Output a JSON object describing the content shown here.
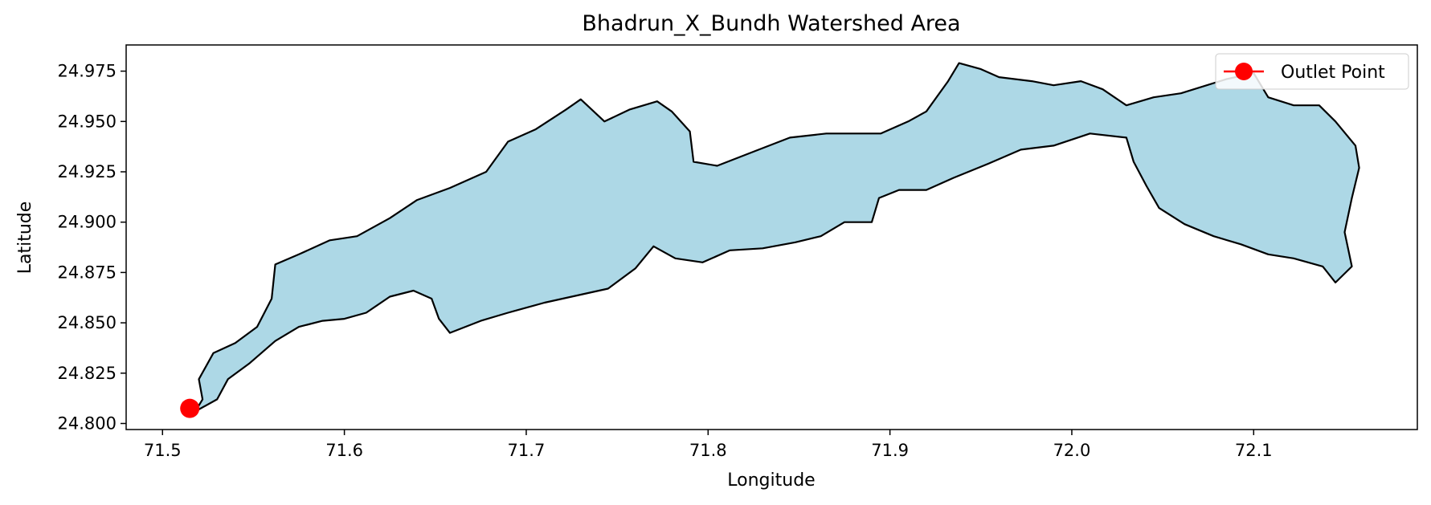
{
  "chart_data": {
    "type": "area",
    "title": "Bhadrun_X_Bundh Watershed Area",
    "xlabel": "Longitude",
    "ylabel": "Latitude",
    "xlim": [
      71.48,
      72.19
    ],
    "ylim": [
      24.797,
      24.988
    ],
    "xticks": [
      71.5,
      71.6,
      71.7,
      71.8,
      71.9,
      72.0,
      72.1
    ],
    "yticks": [
      24.8,
      24.825,
      24.85,
      24.875,
      24.9,
      24.925,
      24.95,
      24.975
    ],
    "xtick_labels": [
      "71.5",
      "71.6",
      "71.7",
      "71.8",
      "71.9",
      "72.0",
      "72.1"
    ],
    "ytick_labels": [
      "24.800",
      "24.825",
      "24.850",
      "24.875",
      "24.900",
      "24.925",
      "24.950",
      "24.975"
    ],
    "grid": false,
    "legend": {
      "placement": "top-right",
      "entries": [
        {
          "label": "Outlet Point",
          "marker": "circle",
          "color": "#ff0000"
        }
      ]
    },
    "series": [
      {
        "kind": "polygon",
        "fill": "#add8e6",
        "edge": "#000000",
        "points": [
          [
            71.518,
            24.806
          ],
          [
            71.522,
            24.812
          ],
          [
            71.52,
            24.822
          ],
          [
            71.528,
            24.835
          ],
          [
            71.54,
            24.84
          ],
          [
            71.552,
            24.848
          ],
          [
            71.56,
            24.862
          ],
          [
            71.562,
            24.879
          ],
          [
            71.575,
            24.884
          ],
          [
            71.592,
            24.891
          ],
          [
            71.607,
            24.893
          ],
          [
            71.625,
            24.902
          ],
          [
            71.64,
            24.911
          ],
          [
            71.658,
            24.917
          ],
          [
            71.678,
            24.925
          ],
          [
            71.69,
            24.94
          ],
          [
            71.705,
            24.946
          ],
          [
            71.722,
            24.956
          ],
          [
            71.73,
            24.961
          ],
          [
            71.743,
            24.95
          ],
          [
            71.757,
            24.956
          ],
          [
            71.772,
            24.96
          ],
          [
            71.78,
            24.955
          ],
          [
            71.79,
            24.945
          ],
          [
            71.792,
            24.93
          ],
          [
            71.805,
            24.928
          ],
          [
            71.825,
            24.935
          ],
          [
            71.845,
            24.942
          ],
          [
            71.865,
            24.944
          ],
          [
            71.88,
            24.944
          ],
          [
            71.895,
            24.944
          ],
          [
            71.91,
            24.95
          ],
          [
            71.92,
            24.955
          ],
          [
            71.932,
            24.97
          ],
          [
            71.938,
            24.979
          ],
          [
            71.95,
            24.976
          ],
          [
            71.96,
            24.972
          ],
          [
            71.978,
            24.97
          ],
          [
            71.99,
            24.968
          ],
          [
            72.005,
            24.97
          ],
          [
            72.017,
            24.966
          ],
          [
            72.03,
            24.958
          ],
          [
            72.045,
            24.962
          ],
          [
            72.06,
            24.964
          ],
          [
            72.085,
            24.971
          ],
          [
            72.1,
            24.974
          ],
          [
            72.108,
            24.962
          ],
          [
            72.122,
            24.958
          ],
          [
            72.136,
            24.958
          ],
          [
            72.145,
            24.95
          ],
          [
            72.156,
            24.938
          ],
          [
            72.158,
            24.927
          ],
          [
            72.154,
            24.912
          ],
          [
            72.15,
            24.895
          ],
          [
            72.154,
            24.878
          ],
          [
            72.145,
            24.87
          ],
          [
            72.138,
            24.878
          ],
          [
            72.122,
            24.882
          ],
          [
            72.108,
            24.884
          ],
          [
            72.093,
            24.889
          ],
          [
            72.078,
            24.893
          ],
          [
            72.062,
            24.899
          ],
          [
            72.048,
            24.907
          ],
          [
            72.041,
            24.918
          ],
          [
            72.034,
            24.93
          ],
          [
            72.03,
            24.942
          ],
          [
            72.01,
            24.944
          ],
          [
            71.99,
            24.938
          ],
          [
            71.972,
            24.936
          ],
          [
            71.954,
            24.929
          ],
          [
            71.935,
            24.922
          ],
          [
            71.92,
            24.916
          ],
          [
            71.905,
            24.916
          ],
          [
            71.894,
            24.912
          ],
          [
            71.89,
            24.9
          ],
          [
            71.882,
            24.9
          ],
          [
            71.875,
            24.9
          ],
          [
            71.862,
            24.893
          ],
          [
            71.848,
            24.89
          ],
          [
            71.83,
            24.887
          ],
          [
            71.812,
            24.886
          ],
          [
            71.797,
            24.88
          ],
          [
            71.782,
            24.882
          ],
          [
            71.77,
            24.888
          ],
          [
            71.76,
            24.877
          ],
          [
            71.745,
            24.867
          ],
          [
            71.725,
            24.863
          ],
          [
            71.71,
            24.86
          ],
          [
            71.69,
            24.855
          ],
          [
            71.675,
            24.851
          ],
          [
            71.658,
            24.845
          ],
          [
            71.652,
            24.852
          ],
          [
            71.648,
            24.862
          ],
          [
            71.638,
            24.866
          ],
          [
            71.625,
            24.863
          ],
          [
            71.612,
            24.855
          ],
          [
            71.6,
            24.852
          ],
          [
            71.588,
            24.851
          ],
          [
            71.575,
            24.848
          ],
          [
            71.562,
            24.841
          ],
          [
            71.548,
            24.83
          ],
          [
            71.536,
            24.822
          ],
          [
            71.53,
            24.812
          ]
        ]
      },
      {
        "name": "Outlet Point",
        "kind": "point",
        "color": "#ff0000",
        "points": [
          [
            71.515,
            24.8075
          ]
        ]
      }
    ]
  }
}
